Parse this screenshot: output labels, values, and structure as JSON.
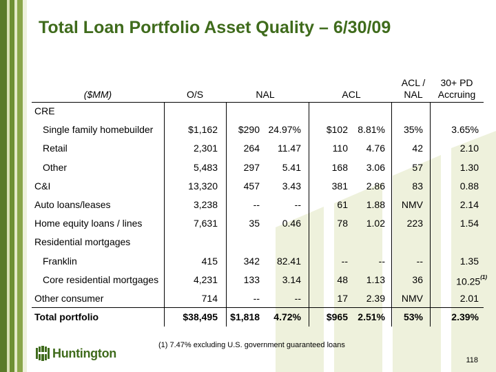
{
  "title": "Total Loan Portfolio Asset Quality – 6/30/09",
  "headers": {
    "unit": "($MM)",
    "os": "O/S",
    "nal": "NAL",
    "acl": "ACL",
    "acl_nal_1": "ACL /",
    "acl_nal_2": "NAL",
    "pd_1": "30+ PD",
    "pd_2": "Accruing"
  },
  "rows": [
    {
      "label": "CRE",
      "indent": false,
      "os": "",
      "nal_amt": "",
      "nal_pct": "",
      "acl_amt": "",
      "acl_pct": "",
      "acl_nal": "",
      "pd": ""
    },
    {
      "label": "Single family homebuilder",
      "indent": true,
      "os": "$1,162",
      "nal_amt": "$290",
      "nal_pct": "24.97%",
      "acl_amt": "$102",
      "acl_pct": "8.81%",
      "acl_nal": "35%",
      "pd": "3.65%"
    },
    {
      "label": "Retail",
      "indent": true,
      "os": "2,301",
      "nal_amt": "264",
      "nal_pct": "11.47",
      "acl_amt": "110",
      "acl_pct": "4.76",
      "acl_nal": "42",
      "pd": "2.10"
    },
    {
      "label": "Other",
      "indent": true,
      "os": "5,483",
      "nal_amt": "297",
      "nal_pct": "5.41",
      "acl_amt": "168",
      "acl_pct": "3.06",
      "acl_nal": "57",
      "pd": "1.30"
    },
    {
      "label": "C&I",
      "indent": false,
      "os": "13,320",
      "nal_amt": "457",
      "nal_pct": "3.43",
      "acl_amt": "381",
      "acl_pct": "2.86",
      "acl_nal": "83",
      "pd": "0.88"
    },
    {
      "label": "Auto loans/leases",
      "indent": false,
      "os": "3,238",
      "nal_amt": "--",
      "nal_pct": "--",
      "acl_amt": "61",
      "acl_pct": "1.88",
      "acl_nal": "NMV",
      "pd": "2.14"
    },
    {
      "label": "Home equity loans / lines",
      "indent": false,
      "os": "7,631",
      "nal_amt": "35",
      "nal_pct": "0.46",
      "acl_amt": "78",
      "acl_pct": "1.02",
      "acl_nal": "223",
      "pd": "1.54"
    },
    {
      "label": "Residential mortgages",
      "indent": false,
      "os": "",
      "nal_amt": "",
      "nal_pct": "",
      "acl_amt": "",
      "acl_pct": "",
      "acl_nal": "",
      "pd": ""
    },
    {
      "label": "Franklin",
      "indent": true,
      "os": "415",
      "nal_amt": "342",
      "nal_pct": "82.41",
      "acl_amt": "--",
      "acl_pct": "--",
      "acl_nal": "--",
      "pd": "1.35"
    },
    {
      "label": "Core residential mortgages",
      "indent": true,
      "os": "4,231",
      "nal_amt": "133",
      "nal_pct": "3.14",
      "acl_amt": "48",
      "acl_pct": "1.13",
      "acl_nal": "36",
      "pd": "10.25",
      "pd_note": "(1)"
    },
    {
      "label": "Other consumer",
      "indent": false,
      "os": "714",
      "nal_amt": "--",
      "nal_pct": "--",
      "acl_amt": "17",
      "acl_pct": "2.39",
      "acl_nal": "NMV",
      "pd": "2.01"
    },
    {
      "label": "Total portfolio",
      "indent": false,
      "bold": true,
      "os": "$38,495",
      "nal_amt": "$1,818",
      "nal_pct": "4.72%",
      "acl_amt": "$965",
      "acl_pct": "2.51%",
      "acl_nal": "53%",
      "pd": "2.39%"
    }
  ],
  "footnote": "(1)  7.47% excluding U.S. government guaranteed loans",
  "logo_text": "Huntington",
  "page_number": "118",
  "colors": {
    "title": "#3f6b1c",
    "stripe_dark": "#5a7a2a",
    "watermark": "#eef1dc"
  }
}
